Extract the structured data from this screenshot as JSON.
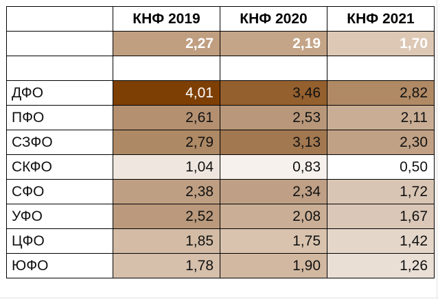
{
  "header": {
    "corner": "",
    "columns": [
      "КНФ 2019",
      "КНФ 2020",
      "КНФ 2021"
    ]
  },
  "totals": {
    "label": "",
    "values": [
      "2,27",
      "2,19",
      "1,70"
    ],
    "colors": [
      "#c09e80",
      "#c4a587",
      "#ddc8b5"
    ]
  },
  "spacer": {
    "label": ""
  },
  "rows": [
    {
      "label": "ДФО",
      "values": [
        "4,01",
        "3,46",
        "2,82"
      ],
      "colors": [
        "#7e3f04",
        "#94602e",
        "#b08a65"
      ]
    },
    {
      "label": "ПФО",
      "values": [
        "2,61",
        "2,53",
        "2,11"
      ],
      "colors": [
        "#b49071",
        "#b8977a",
        "#c9ae95"
      ]
    },
    {
      "label": "СЗФО",
      "values": [
        "2,79",
        "3,13",
        "2,30"
      ],
      "colors": [
        "#ae8965",
        "#a27850",
        "#c1a185"
      ]
    },
    {
      "label": "СКФО",
      "values": [
        "1,04",
        "0,83",
        "0,50"
      ],
      "colors": [
        "#efe7df",
        "#f6f1ec",
        "#ffffff"
      ]
    },
    {
      "label": "СФО",
      "values": [
        "2,38",
        "2,34",
        "1,72"
      ],
      "colors": [
        "#bf9f83",
        "#bfa086",
        "#d9c5b4"
      ]
    },
    {
      "label": "УФО",
      "values": [
        "2,52",
        "2,08",
        "1,67"
      ],
      "colors": [
        "#ba997c",
        "#caaf96",
        "#dac7b7"
      ]
    },
    {
      "label": "ЦФО",
      "values": [
        "1,85",
        "1,75",
        "1,42"
      ],
      "colors": [
        "#d3bba5",
        "#d9c3ae",
        "#e4d6c9"
      ]
    },
    {
      "label": "ЮФО",
      "values": [
        "1,78",
        "1,90",
        "1,26"
      ],
      "colors": [
        "#d6bfab",
        "#d2b8a1",
        "#eadfd5"
      ]
    }
  ]
}
